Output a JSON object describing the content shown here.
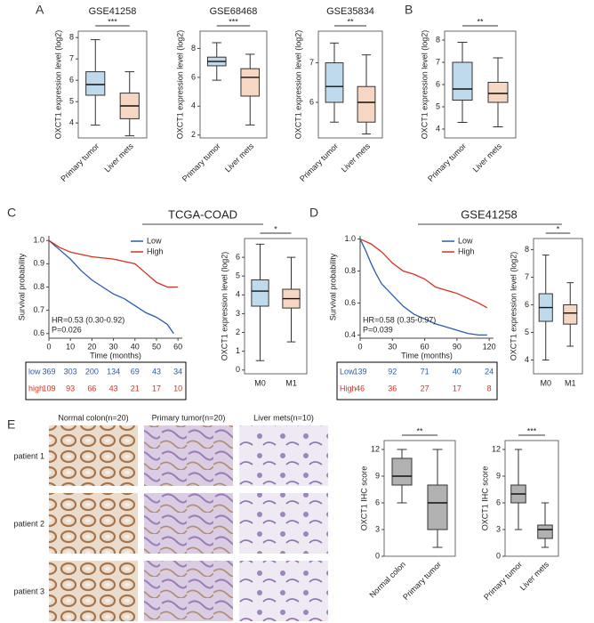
{
  "panel_labels": [
    "A",
    "B",
    "C",
    "D",
    "E"
  ],
  "ihc": {
    "columns": [
      "Normal colon(n=20)",
      "Primary tumor(n=20)",
      "Liver mets(n=10)"
    ],
    "rows": [
      "patient 1",
      "patient 2",
      "patient 3"
    ]
  },
  "chart_data": [
    {
      "type": "box",
      "title": "GSE41258",
      "ylabel": "OXCT1 expression level (log2)",
      "categories": [
        "Primary tumor",
        "Liver mets"
      ],
      "colors": [
        "#2f86c4",
        "#e07b39"
      ],
      "boxes": [
        {
          "min": 3.9,
          "q1": 5.3,
          "median": 5.8,
          "q3": 6.4,
          "max": 7.9
        },
        {
          "min": 3.4,
          "q1": 4.2,
          "median": 4.8,
          "q3": 5.4,
          "max": 6.4
        }
      ],
      "ylim": [
        3.3,
        8.3
      ],
      "yticks": [
        4,
        5,
        6,
        7,
        8
      ],
      "annotation": "***"
    },
    {
      "type": "box",
      "title": "GSE68468",
      "ylabel": "OXCT1 expression level (log2)",
      "categories": [
        "Primary tumor",
        "Liver mets"
      ],
      "colors": [
        "#2f86c4",
        "#e07b39"
      ],
      "boxes": [
        {
          "min": 5.8,
          "q1": 6.8,
          "median": 7.1,
          "q3": 7.4,
          "max": 8.4
        },
        {
          "min": 2.7,
          "q1": 4.7,
          "median": 6.0,
          "q3": 6.6,
          "max": 7.6
        }
      ],
      "ylim": [
        1.8,
        9.2
      ],
      "yticks": [
        2,
        4,
        6,
        8
      ],
      "annotation": "***"
    },
    {
      "type": "box",
      "title": "GSE35834",
      "ylabel": "OXCT1 expression level (log2)",
      "categories": [
        "Primary tumor",
        "Liver mets"
      ],
      "colors": [
        "#2f86c4",
        "#e07b39"
      ],
      "boxes": [
        {
          "min": 5.5,
          "q1": 6.0,
          "median": 6.4,
          "q3": 7.0,
          "max": 7.5
        },
        {
          "min": 5.2,
          "q1": 5.5,
          "median": 6.0,
          "q3": 6.4,
          "max": 7.2
        }
      ],
      "ylim": [
        5.1,
        7.8
      ],
      "yticks": [
        6,
        7
      ],
      "annotation": "**"
    },
    {
      "type": "box",
      "ylabel": "OXCT1 expression level (log2)",
      "categories": [
        "Primary tumor",
        "Liver mets"
      ],
      "colors": [
        "#2f86c4",
        "#e07b39"
      ],
      "boxes": [
        {
          "min": 4.3,
          "q1": 5.3,
          "median": 5.8,
          "q3": 7.0,
          "max": 7.9
        },
        {
          "min": 4.1,
          "q1": 5.2,
          "median": 5.6,
          "q3": 6.1,
          "max": 7.2
        }
      ],
      "ylim": [
        3.6,
        8.4
      ],
      "yticks": [
        4,
        5,
        6,
        7,
        8
      ],
      "annotation": "**"
    },
    {
      "type": "survival",
      "title": "TCGA-COAD",
      "xlabel": "Time (months)",
      "ylabel": "Survival probability",
      "series": [
        {
          "name": "Low",
          "color": "#2b5ca8",
          "x": [
            0,
            5,
            10,
            15,
            20,
            25,
            30,
            35,
            40,
            45,
            50,
            55,
            58
          ],
          "values": [
            1.0,
            0.96,
            0.92,
            0.87,
            0.83,
            0.8,
            0.77,
            0.75,
            0.72,
            0.69,
            0.67,
            0.64,
            0.6
          ]
        },
        {
          "name": "High",
          "color": "#d7301f",
          "x": [
            0,
            5,
            10,
            15,
            20,
            30,
            40,
            45,
            50,
            55,
            60
          ],
          "values": [
            1.0,
            0.97,
            0.95,
            0.94,
            0.93,
            0.92,
            0.9,
            0.86,
            0.82,
            0.8,
            0.8
          ]
        }
      ],
      "xlim": [
        0,
        62
      ],
      "xticks": [
        0,
        10,
        20,
        30,
        40,
        50,
        60
      ],
      "ylim": [
        0.58,
        1.02
      ],
      "yticks": [
        0.6,
        0.7,
        0.8,
        0.9,
        {
          "value": 1,
          "label": "1.0"
        }
      ],
      "annotations": [
        "HR=0.53 (0.30-0.92)",
        "P=0.026"
      ],
      "risk_table": [
        {
          "name": "low",
          "color": "#2b5ca8",
          "values": [
            369,
            303,
            200,
            134,
            69,
            43,
            34
          ]
        },
        {
          "name": "high",
          "color": "#d7301f",
          "values": [
            109,
            93,
            66,
            43,
            21,
            17,
            10
          ]
        }
      ]
    },
    {
      "type": "box",
      "ylabel": "OXCT1 expression level (log2)",
      "categories": [
        "M0",
        "M1"
      ],
      "colors": [
        "#2f86c4",
        "#e07b39"
      ],
      "boxes": [
        {
          "min": 0.5,
          "q1": 3.4,
          "median": 4.2,
          "q3": 4.8,
          "max": 6.7
        },
        {
          "min": 1.5,
          "q1": 3.3,
          "median": 3.8,
          "q3": 4.3,
          "max": 6.0
        }
      ],
      "ylim": [
        -0.2,
        7
      ],
      "yticks": [
        0,
        1,
        2,
        3,
        4,
        5,
        6
      ],
      "annotation": "*"
    },
    {
      "type": "survival",
      "title": "GSE41258",
      "xlabel": "Time (months)",
      "ylabel": "Survival probability",
      "series": [
        {
          "name": "Low",
          "color": "#2b5ca8",
          "x": [
            0,
            5,
            10,
            15,
            20,
            30,
            40,
            50,
            60,
            70,
            80,
            90,
            100,
            110,
            118
          ],
          "values": [
            1.0,
            0.93,
            0.85,
            0.78,
            0.72,
            0.65,
            0.58,
            0.53,
            0.5,
            0.47,
            0.45,
            0.43,
            0.41,
            0.4,
            0.4
          ]
        },
        {
          "name": "High",
          "color": "#d7301f",
          "x": [
            0,
            10,
            20,
            30,
            40,
            50,
            60,
            70,
            80,
            90,
            100,
            110,
            118
          ],
          "values": [
            1.0,
            0.97,
            0.92,
            0.85,
            0.8,
            0.78,
            0.75,
            0.7,
            0.68,
            0.66,
            0.63,
            0.6,
            0.57
          ]
        }
      ],
      "xlim": [
        0,
        124
      ],
      "xticks": [
        0,
        30,
        60,
        90,
        120
      ],
      "ylim": [
        0.38,
        1.02
      ],
      "yticks": [
        0.4,
        0.6,
        0.8,
        {
          "value": 1,
          "label": "1.0"
        }
      ],
      "annotations": [
        "HR=0.58 (0.35-0.97)",
        "P=0.039"
      ],
      "risk_table": [
        {
          "name": "Low",
          "color": "#2b5ca8",
          "values": [
            139,
            92,
            71,
            40,
            24
          ]
        },
        {
          "name": "High",
          "color": "#d7301f",
          "values": [
            46,
            36,
            27,
            17,
            8
          ]
        }
      ]
    },
    {
      "type": "box",
      "ylabel": "OXCT1 expression level (log2)",
      "categories": [
        "M0",
        "M1"
      ],
      "colors": [
        "#2f86c4",
        "#e07b39"
      ],
      "boxes": [
        {
          "min": 4.0,
          "q1": 5.4,
          "median": 5.9,
          "q3": 6.4,
          "max": 7.8
        },
        {
          "min": 4.5,
          "q1": 5.3,
          "median": 5.7,
          "q3": 6.0,
          "max": 6.8
        }
      ],
      "ylim": [
        3.5,
        8.4
      ],
      "yticks": [
        4,
        5,
        6,
        7,
        8
      ],
      "annotation": "*"
    },
    {
      "type": "box",
      "ylabel": "OXCT1 IHC score",
      "categories": [
        "Normal colon",
        "Primary tumor"
      ],
      "colors": [
        "#2f86c4",
        "#e07b39"
      ],
      "boxes": [
        {
          "min": 6,
          "q1": 8,
          "median": 9,
          "q3": 11,
          "max": 12
        },
        {
          "min": 1,
          "q1": 3,
          "median": 6,
          "q3": 8,
          "max": 12
        }
      ],
      "ylim": [
        0,
        13
      ],
      "yticks": [
        0,
        3,
        6,
        9,
        12
      ],
      "annotation": "**"
    },
    {
      "type": "box",
      "ylabel": "OXCT1 IHC score",
      "categories": [
        "Primary tumor",
        "Liver mets"
      ],
      "colors": [
        "#2f86c4",
        "#e07b39"
      ],
      "boxes": [
        {
          "min": 3,
          "q1": 6,
          "median": 7,
          "q3": 8,
          "max": 12
        },
        {
          "min": 1,
          "q1": 2,
          "median": 3,
          "q3": 3.5,
          "max": 6
        }
      ],
      "ylim": [
        0,
        13
      ],
      "yticks": [
        0,
        3,
        6,
        9,
        12
      ],
      "annotation": "***"
    }
  ]
}
